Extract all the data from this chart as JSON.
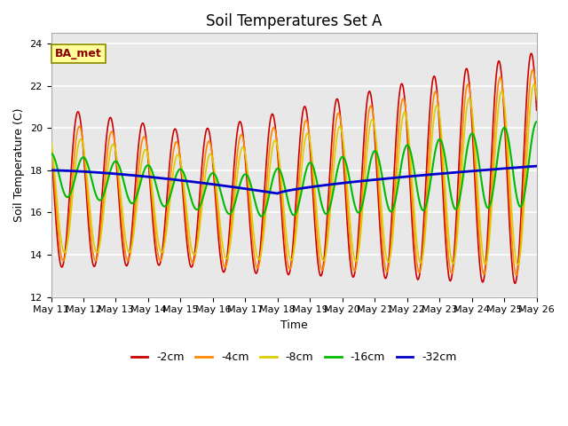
{
  "title": "Soil Temperatures Set A",
  "xlabel": "Time",
  "ylabel": "Soil Temperature (C)",
  "ylim": [
    12,
    24.5
  ],
  "annotation": "BA_met",
  "x_tick_labels": [
    "May 11",
    "May 12",
    "May 13",
    "May 14",
    "May 15",
    "May 16",
    "May 17",
    "May 18",
    "May 19",
    "May 20",
    "May 21",
    "May 22",
    "May 23",
    "May 24",
    "May 25",
    "May 26"
  ],
  "x_tick_positions": [
    0,
    24,
    48,
    72,
    96,
    120,
    144,
    168,
    192,
    216,
    240,
    264,
    288,
    312,
    336,
    360
  ],
  "legend_labels": [
    "-2cm",
    "-4cm",
    "-8cm",
    "-16cm",
    "-32cm"
  ],
  "legend_colors": [
    "#cc0000",
    "#ff8800",
    "#ddcc00",
    "#00bb00",
    "#0000cc"
  ],
  "line_widths": [
    1.2,
    1.2,
    1.2,
    1.5,
    2.0
  ],
  "title_fontsize": 12,
  "label_fontsize": 9,
  "tick_fontsize": 8
}
